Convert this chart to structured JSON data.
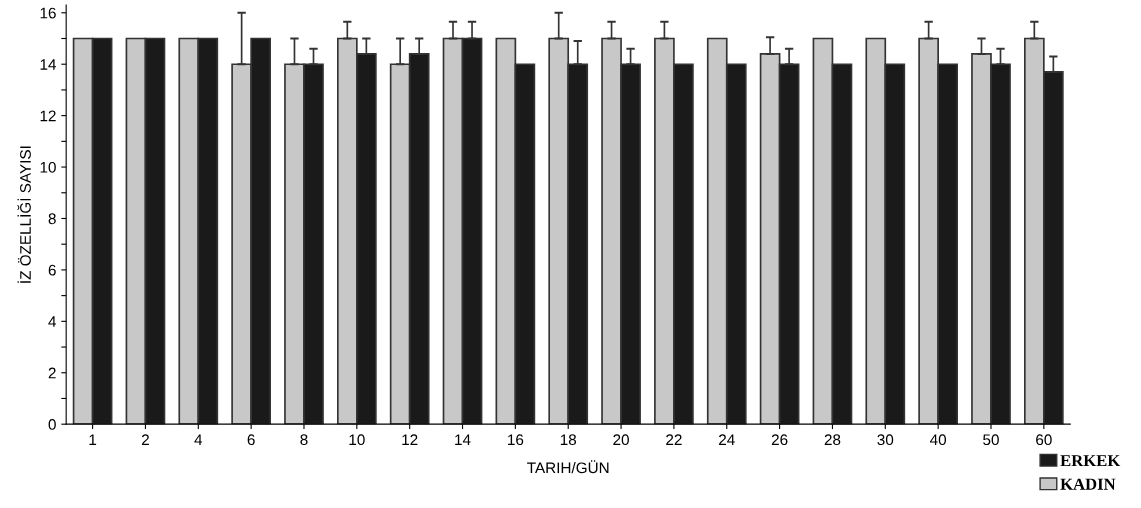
{
  "chart_data": {
    "type": "bar",
    "xlabel": "TARIH/GÜN",
    "ylabel": "İZ ÖZELLİĞİ SAYISI",
    "categories": [
      "1",
      "2",
      "4",
      "6",
      "8",
      "10",
      "12",
      "14",
      "16",
      "18",
      "20",
      "22",
      "24",
      "26",
      "28",
      "30",
      "40",
      "50",
      "60"
    ],
    "series": [
      {
        "name": "KADIN",
        "color": "#c8c8c8",
        "values": [
          15,
          15,
          15,
          14,
          14,
          15,
          14,
          15,
          15,
          15,
          15,
          15,
          15,
          14.4,
          15,
          15,
          15,
          14.4,
          15
        ],
        "errors": [
          null,
          null,
          null,
          2,
          1,
          0.65,
          1,
          0.65,
          null,
          1,
          0.65,
          0.65,
          null,
          0.65,
          null,
          null,
          0.65,
          0.6,
          0.65
        ]
      },
      {
        "name": "ERKEK",
        "color": "#1a1a1a",
        "values": [
          15,
          15,
          15,
          15,
          14,
          14.4,
          14.4,
          15,
          14,
          14,
          14,
          14,
          14,
          14,
          14,
          14,
          14,
          14,
          13.7
        ],
        "errors": [
          null,
          null,
          null,
          null,
          0.6,
          0.6,
          0.6,
          0.65,
          null,
          0.9,
          0.6,
          null,
          null,
          0.6,
          null,
          null,
          null,
          0.6,
          0.6
        ]
      }
    ],
    "ylim": [
      0,
      16.3
    ],
    "yticks": [
      0,
      {
        "value": 1,
        "label": null
      },
      2,
      {
        "value": 3,
        "label": null
      },
      4,
      {
        "value": 5,
        "label": null
      },
      6,
      {
        "value": 7,
        "label": null
      },
      8,
      {
        "value": 9,
        "label": null
      },
      10,
      {
        "value": 11,
        "label": null
      },
      12,
      {
        "value": 13,
        "label": null
      },
      14,
      {
        "value": 15,
        "label": null
      },
      16
    ],
    "legend": "bottom right",
    "grid": false
  }
}
